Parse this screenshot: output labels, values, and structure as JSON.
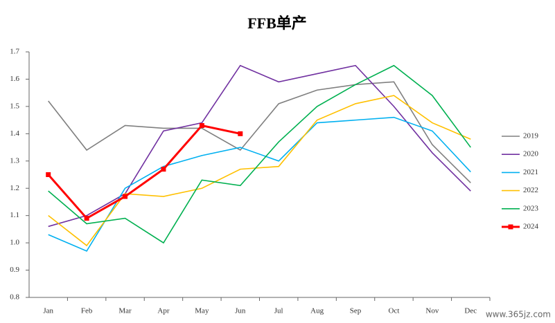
{
  "chart_data": {
    "type": "line",
    "title": "FFB单产",
    "categories": [
      "Jan",
      "Feb",
      "Mar",
      "Apr",
      "May",
      "Jun",
      "Jul",
      "Aug",
      "Sep",
      "Oct",
      "Nov",
      "Dec"
    ],
    "series": [
      {
        "name": "2019",
        "color": "#7f7f7f",
        "values": [
          1.52,
          1.34,
          1.43,
          1.42,
          1.42,
          1.34,
          1.51,
          1.56,
          1.58,
          1.59,
          1.36,
          1.22
        ]
      },
      {
        "name": "2020",
        "color": "#7030a0",
        "values": [
          1.06,
          1.1,
          1.18,
          1.41,
          1.44,
          1.65,
          1.59,
          1.62,
          1.65,
          1.5,
          1.33,
          1.19
        ]
      },
      {
        "name": "2021",
        "color": "#00b0f0",
        "values": [
          1.03,
          0.97,
          1.2,
          1.28,
          1.32,
          1.35,
          1.3,
          1.44,
          1.45,
          1.46,
          1.41,
          1.26
        ]
      },
      {
        "name": "2022",
        "color": "#ffc000",
        "values": [
          1.1,
          0.99,
          1.18,
          1.17,
          1.2,
          1.27,
          1.28,
          1.45,
          1.51,
          1.54,
          1.44,
          1.38
        ]
      },
      {
        "name": "2023",
        "color": "#00b050",
        "values": [
          1.19,
          1.07,
          1.09,
          1.0,
          1.23,
          1.21,
          1.37,
          1.5,
          1.58,
          1.65,
          1.54,
          1.35
        ]
      },
      {
        "name": "2024",
        "color": "#ff0000",
        "markers": true,
        "values": [
          1.25,
          1.09,
          1.17,
          1.27,
          1.43,
          1.4,
          null,
          null,
          null,
          null,
          null,
          null
        ]
      }
    ],
    "ylim": [
      0.8,
      1.7
    ],
    "yticks": [
      0.8,
      0.9,
      {
        "value": 1,
        "label": "1.0"
      },
      1.1,
      1.2,
      1.3,
      1.4,
      1.5,
      1.6,
      1.7
    ],
    "legend": "right",
    "watermark": "www.365jz.com"
  }
}
